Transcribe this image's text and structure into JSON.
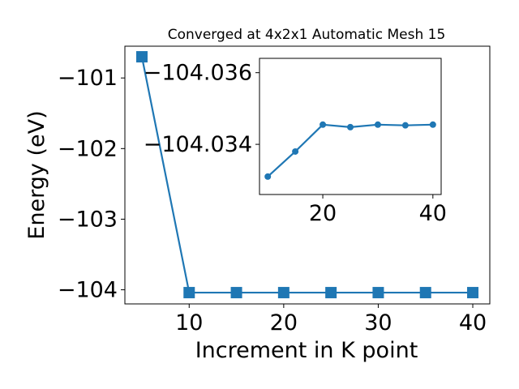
{
  "chart_data": [
    {
      "type": "line",
      "title": "Converged at 4x2x1 Automatic Mesh 15",
      "xlabel": "Increment in K point",
      "ylabel": "Energy (eV)",
      "x": [
        5,
        10,
        15,
        20,
        25,
        30,
        35,
        40
      ],
      "series": [
        {
          "name": "",
          "values": [
            -100.7,
            -104.04,
            -104.04,
            -104.04,
            -104.04,
            -104.04,
            -104.04,
            -104.04
          ]
        }
      ],
      "xlim": [
        3.2,
        41.8
      ],
      "ylim": [
        -104.2,
        -100.55
      ],
      "xticks": [
        10,
        20,
        30,
        40
      ],
      "yticks": [
        -104,
        -103,
        -102,
        -101
      ],
      "ytick_labels": [
        "−104",
        "−103",
        "−102",
        "−101"
      ],
      "marker": "square",
      "color": "#1f77b4",
      "grid": false,
      "legend": "none"
    },
    {
      "type": "line",
      "title": "",
      "xlabel": "",
      "ylabel": "",
      "x": [
        10,
        15,
        20,
        25,
        30,
        35,
        40
      ],
      "series": [
        {
          "name": "",
          "values": [
            -104.0331,
            -104.0338,
            -104.03455,
            -104.03448,
            -104.03455,
            -104.03453,
            -104.03455
          ]
        }
      ],
      "xlim": [
        8.5,
        41.5
      ],
      "ylim": [
        -104.0326,
        -104.0364
      ],
      "xticks": [
        20,
        40
      ],
      "yticks": [
        -104.036,
        -104.034
      ],
      "ytick_labels": [
        "−104.036",
        "−104.034"
      ],
      "marker": "circle",
      "color": "#1f77b4",
      "grid": false,
      "legend": "none"
    }
  ]
}
